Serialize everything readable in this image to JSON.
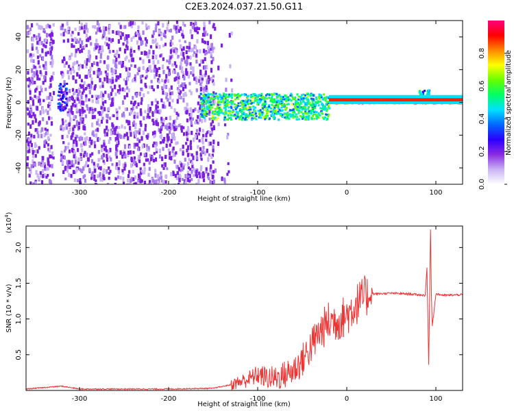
{
  "title": "C2E3.2024.037.21.50.G11",
  "chart_data": [
    {
      "type": "heatmap",
      "xlabel": "Height of straight line (km)",
      "ylabel": "Frequency (Hz)",
      "xlim": [
        -360,
        130
      ],
      "ylim": [
        -50,
        50
      ],
      "x_ticks": [
        -300,
        -200,
        -100,
        0,
        100
      ],
      "y_ticks": [
        -40,
        -20,
        0,
        20,
        40
      ],
      "colorbar": {
        "label": "Normalized spectral amplitude",
        "range": [
          0.0,
          1.0
        ],
        "ticks": [
          0.0,
          0.2,
          0.4,
          0.6,
          0.8
        ],
        "colors": [
          "#ffffff",
          "#c9b3f5",
          "#8a2be2",
          "#2b00ff",
          "#0066ff",
          "#00e0ff",
          "#00ff66",
          "#66ff00",
          "#ffff00",
          "#ff8800",
          "#ff0000",
          "#ff0080"
        ]
      },
      "regions": [
        {
          "x": [
            -360,
            -150
          ],
          "freq": [
            -50,
            50
          ],
          "amplitude": 0.1,
          "pattern": "scattered noise"
        },
        {
          "x": [
            -325,
            -315
          ],
          "freq": [
            -5,
            12
          ],
          "amplitude": 0.25
        },
        {
          "x": [
            -165,
            -20
          ],
          "freq": [
            -10,
            6
          ],
          "amplitude": 0.5
        },
        {
          "x": [
            -20,
            130
          ],
          "freq": [
            0,
            3
          ],
          "amplitude": 0.9
        },
        {
          "x": [
            80,
            92
          ],
          "freq": [
            0,
            8
          ],
          "amplitude": 0.4
        }
      ],
      "grid": false
    },
    {
      "type": "line",
      "xlabel": "Height of straight line (km)",
      "ylabel": "SNR (10 * v/v)",
      "y_multiplier": "(x10^4)",
      "xlim": [
        -360,
        130
      ],
      "ylim": [
        0,
        2.3
      ],
      "x_ticks": [
        -300,
        -200,
        -100,
        0,
        100
      ],
      "y_ticks": [
        0.5,
        1.0,
        1.5,
        2.0
      ],
      "series": [
        {
          "color": "#ee3333",
          "x": [
            -360,
            -320,
            -300,
            -250,
            -200,
            -150,
            -130,
            -110,
            -100,
            -90,
            -80,
            -70,
            -60,
            -50,
            -40,
            -30,
            -20,
            -10,
            0,
            10,
            20,
            30,
            50,
            70,
            88,
            90,
            92,
            94,
            95,
            96,
            100,
            110,
            130
          ],
          "y": [
            0.02,
            0.06,
            0.02,
            0.02,
            0.02,
            0.03,
            0.08,
            0.16,
            0.22,
            0.18,
            0.17,
            0.22,
            0.28,
            0.42,
            0.62,
            0.82,
            0.96,
            0.98,
            1.05,
            1.2,
            1.31,
            1.35,
            1.36,
            1.35,
            1.33,
            1.72,
            0.36,
            2.26,
            1.35,
            0.9,
            1.35,
            1.33,
            1.34
          ],
          "noise": "high between x=-130 and x=30"
        }
      ],
      "grid": false
    }
  ]
}
